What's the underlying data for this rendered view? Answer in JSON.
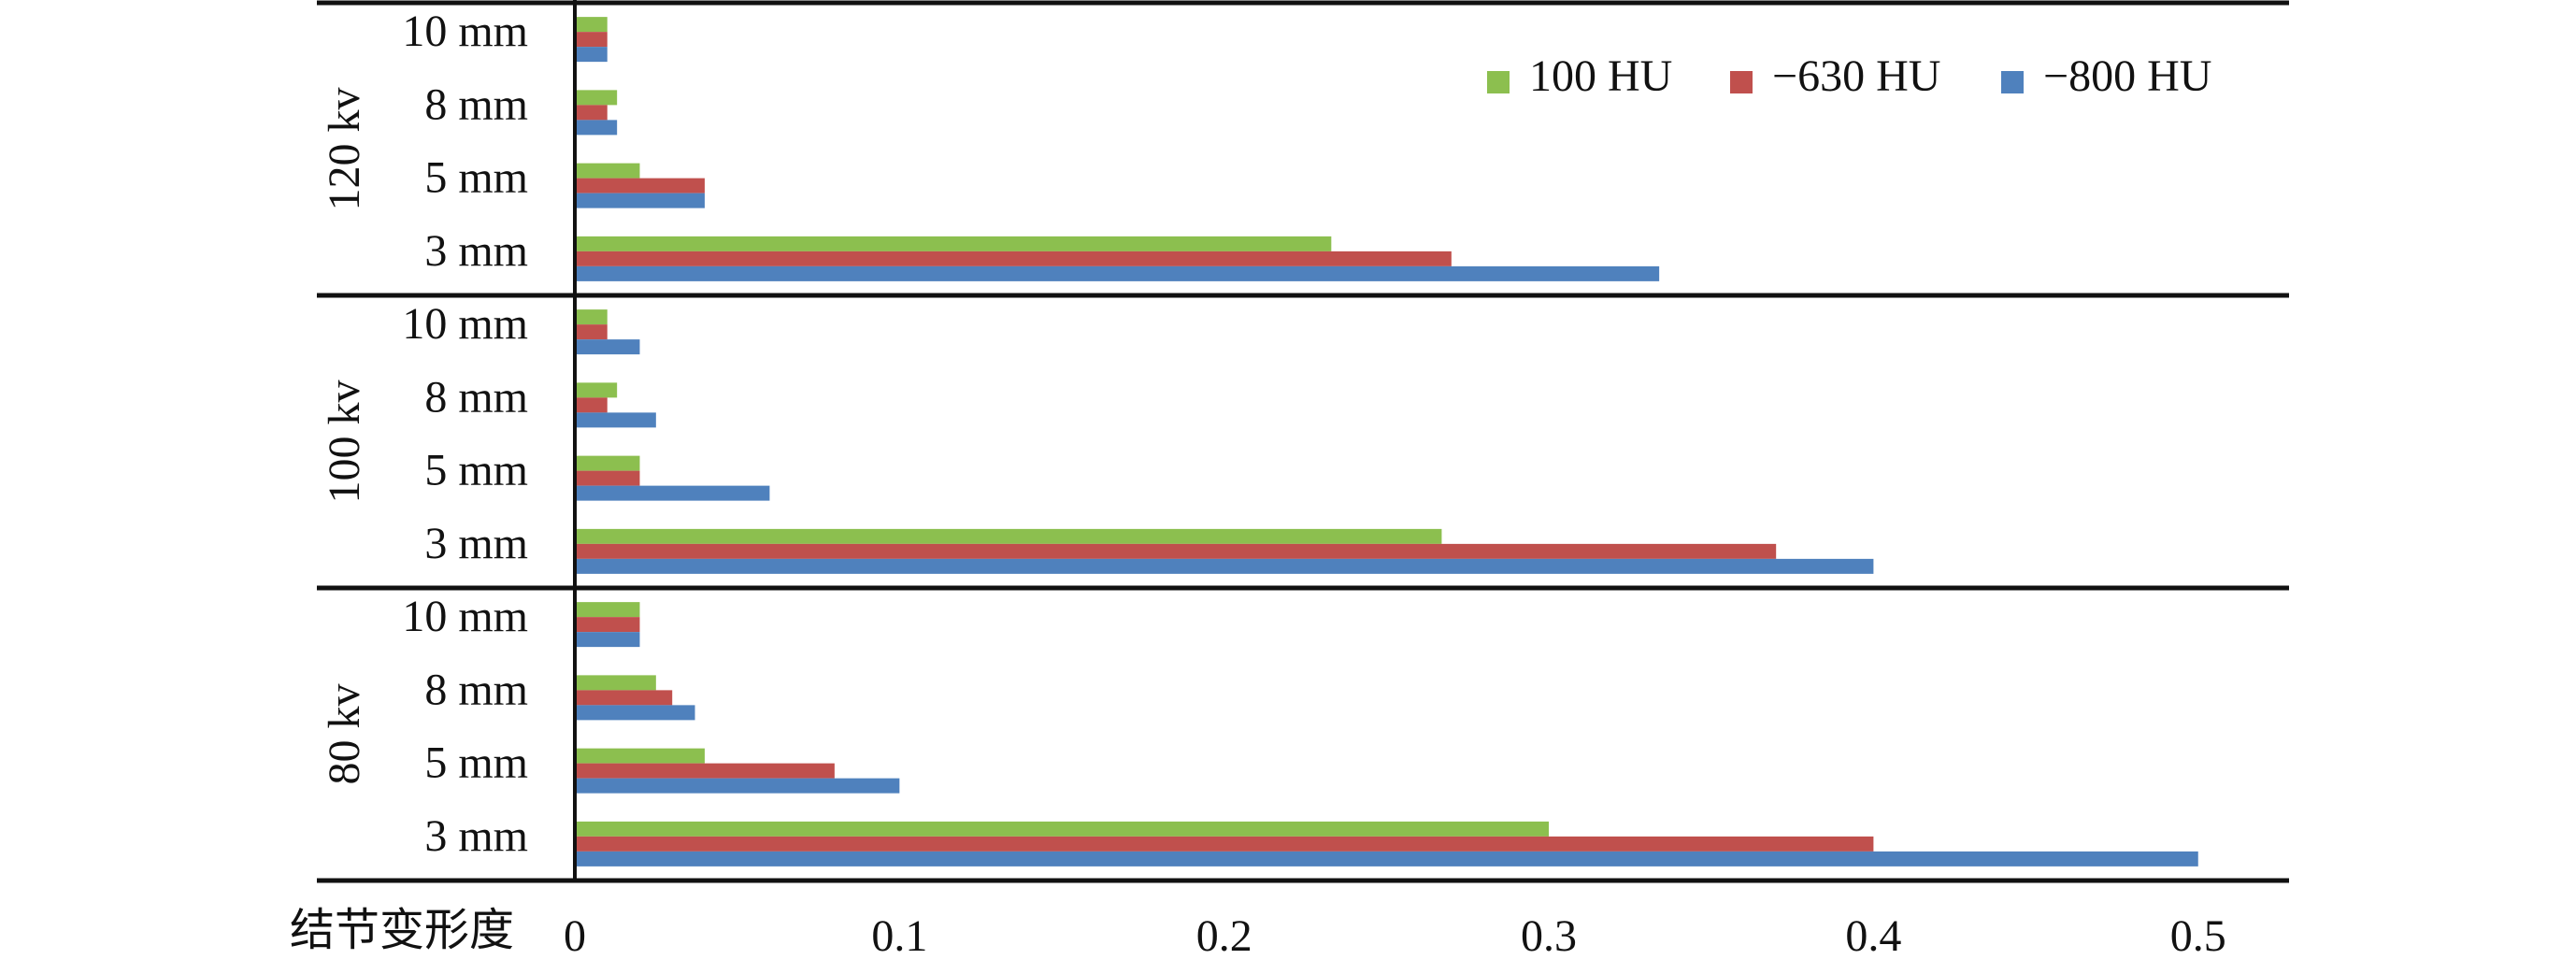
{
  "chart_data": {
    "type": "hbar-grouped",
    "x_label": "结节变形度",
    "groups": [
      {
        "label": "120 kv",
        "categories": [
          "10 mm",
          "8 mm",
          "5 mm",
          "3 mm"
        ]
      },
      {
        "label": "100 kv",
        "categories": [
          "10 mm",
          "8 mm",
          "5 mm",
          "3 mm"
        ]
      },
      {
        "label": "80 kv",
        "categories": [
          "10 mm",
          "8 mm",
          "5 mm",
          "3 mm"
        ]
      }
    ],
    "series": [
      {
        "name": "100 HU",
        "color": "#8cbf4f",
        "values": [
          0.01,
          0.013,
          0.02,
          0.233,
          0.01,
          0.013,
          0.02,
          0.267,
          0.02,
          0.025,
          0.04,
          0.3
        ]
      },
      {
        "name": "−630 HU",
        "color": "#c0504d",
        "values": [
          0.01,
          0.01,
          0.04,
          0.27,
          0.01,
          0.01,
          0.02,
          0.37,
          0.02,
          0.03,
          0.08,
          0.4
        ]
      },
      {
        "name": "−800 HU",
        "color": "#4f81bd",
        "values": [
          0.01,
          0.013,
          0.04,
          0.334,
          0.02,
          0.025,
          0.06,
          0.4,
          0.02,
          0.037,
          0.1,
          0.5
        ]
      }
    ],
    "xlim": [
      0,
      0.528
    ],
    "xticks": [
      0,
      0.1,
      0.2,
      0.3,
      0.4,
      0.5
    ],
    "legend": "upper right"
  }
}
